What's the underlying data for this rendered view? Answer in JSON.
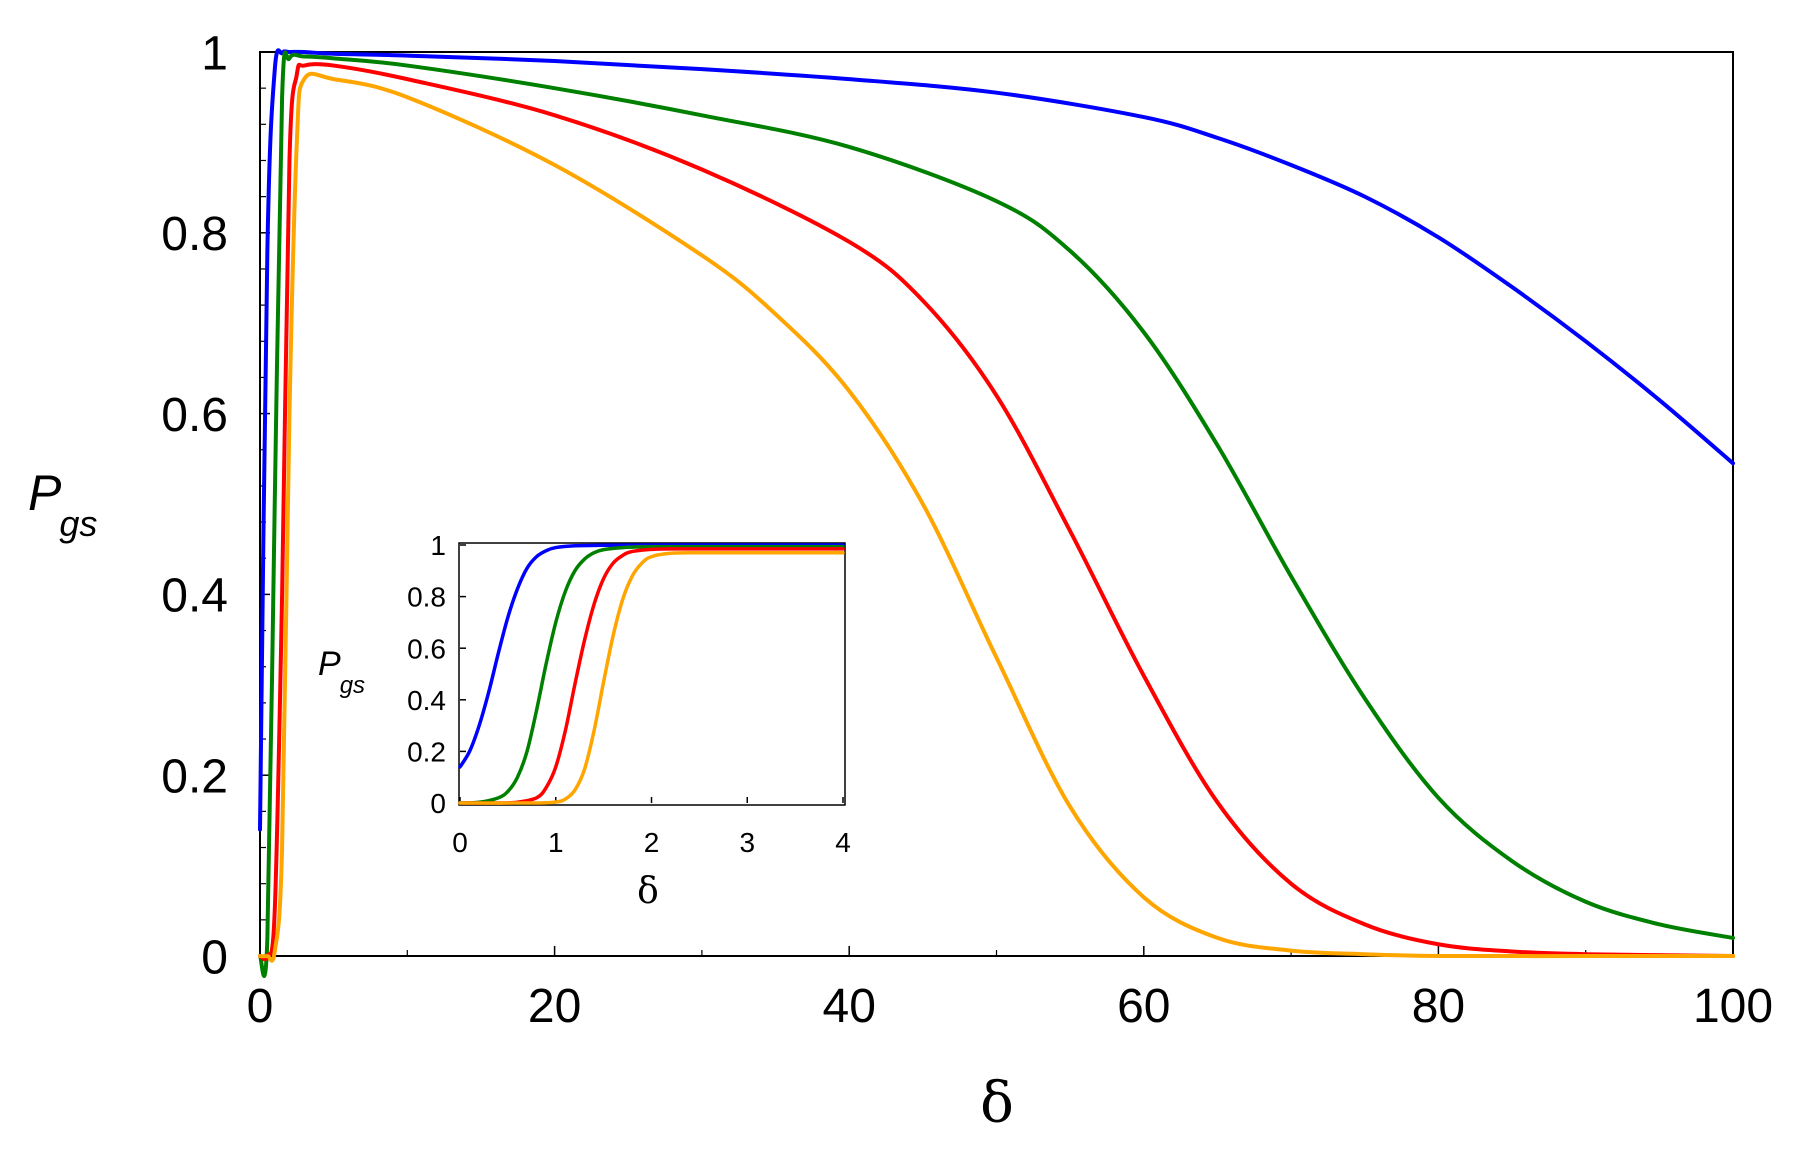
{
  "chart_data": [
    {
      "id": "main",
      "type": "line",
      "title": "",
      "xlabel": "δ",
      "ylabel_main": "P",
      "ylabel_sub": "gs",
      "xlim": [
        0,
        100
      ],
      "ylim": [
        0,
        1
      ],
      "xticks": [
        "0",
        "20",
        "40",
        "60",
        "80",
        "100"
      ],
      "yticks": [
        "0",
        "0.2",
        "0.4",
        "0.6",
        "0.8",
        "1"
      ],
      "grid": false,
      "series": [
        {
          "name": "blue",
          "color": "#0000ff",
          "x": [
            0,
            0.5,
            1,
            1.5,
            2,
            3,
            5,
            10,
            20,
            30,
            40,
            50,
            60,
            65,
            70,
            75,
            80,
            85,
            90,
            95,
            100
          ],
          "y": [
            0.14,
            0.78,
            0.98,
            0.999,
            1.0,
            1.0,
            0.998,
            0.996,
            0.99,
            0.981,
            0.97,
            0.955,
            0.928,
            0.905,
            0.875,
            0.84,
            0.795,
            0.74,
            0.68,
            0.615,
            0.545
          ]
        },
        {
          "name": "green",
          "color": "#008000",
          "x": [
            0,
            0.5,
            1,
            1.5,
            2,
            3,
            5,
            10,
            20,
            30,
            40,
            50,
            55,
            60,
            65,
            70,
            75,
            80,
            85,
            90,
            95,
            100
          ],
          "y": [
            0.0,
            0.02,
            0.5,
            0.95,
            0.993,
            0.995,
            0.993,
            0.985,
            0.96,
            0.93,
            0.895,
            0.835,
            0.78,
            0.69,
            0.565,
            0.42,
            0.285,
            0.175,
            0.105,
            0.06,
            0.035,
            0.02
          ]
        },
        {
          "name": "red",
          "color": "#ff0000",
          "x": [
            0,
            0.5,
            1,
            1.5,
            2,
            2.5,
            3,
            5,
            10,
            20,
            30,
            40,
            45,
            50,
            55,
            60,
            65,
            70,
            75,
            80,
            85,
            90,
            100
          ],
          "y": [
            0.0,
            0.0,
            0.05,
            0.4,
            0.88,
            0.975,
            0.985,
            0.985,
            0.97,
            0.93,
            0.87,
            0.79,
            0.725,
            0.62,
            0.47,
            0.31,
            0.17,
            0.08,
            0.035,
            0.013,
            0.005,
            0.002,
            0.0
          ]
        },
        {
          "name": "orange",
          "color": "#ffa500",
          "x": [
            0,
            0.5,
            1,
            1.5,
            2,
            2.5,
            3,
            5,
            10,
            20,
            30,
            35,
            40,
            45,
            50,
            55,
            60,
            65,
            70,
            75,
            80,
            90,
            100
          ],
          "y": [
            0.0,
            0.0,
            0.005,
            0.12,
            0.6,
            0.9,
            0.97,
            0.97,
            0.95,
            0.875,
            0.775,
            0.71,
            0.625,
            0.5,
            0.33,
            0.165,
            0.065,
            0.02,
            0.006,
            0.002,
            0.0,
            0.0,
            0.0
          ]
        }
      ]
    },
    {
      "id": "inset",
      "type": "line",
      "title": "",
      "xlabel": "δ",
      "ylabel_main": "P",
      "ylabel_sub": "gs",
      "xlim": [
        0,
        4
      ],
      "ylim": [
        0,
        1
      ],
      "xticks": [
        "0",
        "1",
        "2",
        "3",
        "4"
      ],
      "yticks": [
        "0",
        "0.2",
        "0.4",
        "0.6",
        "0.8",
        "1"
      ],
      "grid": false,
      "series": [
        {
          "name": "blue",
          "color": "#0000ff",
          "x": [
            0,
            0.1,
            0.2,
            0.3,
            0.4,
            0.5,
            0.6,
            0.7,
            0.8,
            0.9,
            1.0,
            1.2,
            1.5,
            2,
            3,
            4
          ],
          "y": [
            0.14,
            0.2,
            0.3,
            0.43,
            0.58,
            0.72,
            0.83,
            0.91,
            0.955,
            0.978,
            0.99,
            0.997,
            0.999,
            1.0,
            1.0,
            1.0
          ]
        },
        {
          "name": "green",
          "color": "#008000",
          "x": [
            0,
            0.2,
            0.4,
            0.5,
            0.6,
            0.7,
            0.8,
            0.9,
            1.0,
            1.1,
            1.2,
            1.3,
            1.4,
            1.5,
            1.7,
            2,
            3,
            4
          ],
          "y": [
            0.0,
            0.003,
            0.02,
            0.045,
            0.1,
            0.2,
            0.36,
            0.54,
            0.7,
            0.82,
            0.9,
            0.945,
            0.97,
            0.982,
            0.99,
            0.993,
            0.993,
            0.993
          ]
        },
        {
          "name": "red",
          "color": "#ff0000",
          "x": [
            0,
            0.4,
            0.6,
            0.8,
            0.9,
            1.0,
            1.1,
            1.2,
            1.3,
            1.4,
            1.5,
            1.6,
            1.7,
            1.8,
            2.0,
            2.2,
            3,
            4
          ],
          "y": [
            0.0,
            0.0,
            0.003,
            0.02,
            0.06,
            0.14,
            0.28,
            0.46,
            0.63,
            0.77,
            0.87,
            0.93,
            0.96,
            0.975,
            0.983,
            0.985,
            0.985,
            0.985
          ]
        },
        {
          "name": "orange",
          "color": "#ffa500",
          "x": [
            0,
            0.8,
            1.0,
            1.1,
            1.2,
            1.3,
            1.4,
            1.5,
            1.6,
            1.7,
            1.8,
            1.9,
            2.0,
            2.2,
            2.5,
            3,
            4
          ],
          "y": [
            0.0,
            0.0,
            0.004,
            0.015,
            0.05,
            0.13,
            0.28,
            0.47,
            0.65,
            0.79,
            0.88,
            0.93,
            0.955,
            0.968,
            0.97,
            0.97,
            0.97
          ]
        }
      ]
    }
  ]
}
